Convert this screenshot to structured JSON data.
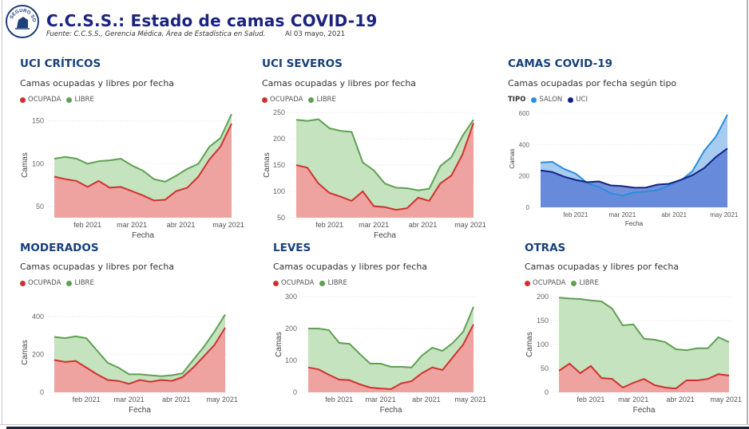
{
  "header": {
    "title": "C.C.S.S.: Estado de camas COVID-19",
    "source": "Fuente: C.C.S.S., Gerencia Médica, Área de Estadística en Salud.",
    "date": "Al 03 mayo, 2021",
    "logo_text": "SEGURO SOCIAL"
  },
  "colors": {
    "title": "#1a237e",
    "panel_title": "#17407a",
    "ocupada": "#d0312d",
    "ocupada_fill": "#efa3a0",
    "libre": "#5fa052",
    "libre_fill": "#c6e3bf",
    "salon": "#2b8de0",
    "salon_fill": "#9cc6f0",
    "uci": "#142283",
    "uci_fill": "#5c7fd6"
  },
  "chart_data": [
    {
      "id": "uci-criticos",
      "type": "area",
      "title": "UCI CRÍTICOS",
      "subtitle": "Camas ocupadas y libres por fecha",
      "legend": [
        "OCUPADA",
        "LIBRE"
      ],
      "legend_position": "top-left",
      "xlabel": "Fecha",
      "ylabel": "Camas",
      "x_ticks": [
        "feb 2021",
        "mar 2021",
        "abr 2021",
        "may 2021"
      ],
      "y_ticks": [
        50,
        100,
        150
      ],
      "ylim": [
        37,
        160
      ],
      "grid": true,
      "x": [
        "2021-01-11",
        "2021-01-18",
        "2021-01-25",
        "2021-02-01",
        "2021-02-08",
        "2021-02-15",
        "2021-02-22",
        "2021-03-01",
        "2021-03-08",
        "2021-03-15",
        "2021-03-22",
        "2021-03-29",
        "2021-04-05",
        "2021-04-12",
        "2021-04-19",
        "2021-04-26",
        "2021-05-03"
      ],
      "series": [
        {
          "name": "OCUPADA",
          "values": [
            85,
            82,
            80,
            73,
            80,
            72,
            73,
            68,
            63,
            57,
            58,
            68,
            72,
            85,
            105,
            120,
            147
          ]
        },
        {
          "name": "LIBRE_TOP",
          "values": [
            106,
            108,
            106,
            100,
            103,
            104,
            106,
            98,
            92,
            82,
            79,
            86,
            94,
            100,
            120,
            130,
            158
          ]
        }
      ]
    },
    {
      "id": "uci-severos",
      "type": "area",
      "title": "UCI SEVEROS",
      "subtitle": "Camas ocupadas y libres por fecha",
      "legend": [
        "OCUPADA",
        "LIBRE"
      ],
      "legend_position": "top-left",
      "xlabel": "Fecha",
      "ylabel": "Camas",
      "x_ticks": [
        "feb 2021",
        "mar 2021",
        "abr 2021",
        "may 2021"
      ],
      "y_ticks": [
        50,
        100,
        150,
        200,
        250
      ],
      "ylim": [
        50,
        250
      ],
      "grid": true,
      "x": [
        "2021-01-11",
        "2021-01-18",
        "2021-01-25",
        "2021-02-01",
        "2021-02-08",
        "2021-02-15",
        "2021-02-22",
        "2021-03-01",
        "2021-03-08",
        "2021-03-15",
        "2021-03-22",
        "2021-03-29",
        "2021-04-05",
        "2021-04-12",
        "2021-04-19",
        "2021-04-26",
        "2021-05-03"
      ],
      "series": [
        {
          "name": "OCUPADA",
          "values": [
            150,
            145,
            115,
            97,
            90,
            82,
            100,
            72,
            70,
            65,
            68,
            88,
            82,
            115,
            130,
            170,
            230
          ]
        },
        {
          "name": "LIBRE_TOP",
          "values": [
            236,
            234,
            237,
            220,
            215,
            213,
            155,
            140,
            115,
            107,
            106,
            102,
            105,
            148,
            165,
            205,
            236
          ]
        }
      ]
    },
    {
      "id": "camas-covid-19",
      "type": "area",
      "title": "CAMAS COVID-19",
      "subtitle": "Camas ocupadas por fecha según tipo",
      "legend_title": "TIPO",
      "legend": [
        "SALON",
        "UCI"
      ],
      "legend_position": "top-left",
      "xlabel": "Fecha",
      "ylabel": "Camas",
      "x_ticks": [
        "feb 2021",
        "mar 2021",
        "abr 2021",
        "may 2021"
      ],
      "y_ticks": [
        0,
        200,
        400,
        600
      ],
      "ylim": [
        0,
        620
      ],
      "grid": true,
      "x": [
        "2021-01-11",
        "2021-01-18",
        "2021-01-25",
        "2021-02-01",
        "2021-02-08",
        "2021-02-15",
        "2021-02-22",
        "2021-03-01",
        "2021-03-08",
        "2021-03-15",
        "2021-03-22",
        "2021-03-29",
        "2021-04-05",
        "2021-04-12",
        "2021-04-19",
        "2021-04-26",
        "2021-05-03"
      ],
      "series": [
        {
          "name": "SALON",
          "values": [
            285,
            290,
            245,
            215,
            155,
            130,
            90,
            75,
            95,
            100,
            110,
            140,
            170,
            230,
            360,
            450,
            590
          ]
        },
        {
          "name": "UCI",
          "values": [
            235,
            225,
            195,
            175,
            160,
            165,
            140,
            135,
            125,
            125,
            145,
            150,
            175,
            205,
            250,
            320,
            375
          ]
        }
      ]
    },
    {
      "id": "moderados",
      "type": "area",
      "title": "MODERADOS",
      "subtitle": "Camas ocupadas y libres por fecha",
      "legend": [
        "OCUPADA",
        "LIBRE"
      ],
      "legend_position": "top-left",
      "xlabel": "Fecha",
      "ylabel": "Camas",
      "x_ticks": [
        "feb 2021",
        "mar 2021",
        "abr 2021",
        "may 2021"
      ],
      "y_ticks": [
        0,
        200,
        400
      ],
      "ylim": [
        0,
        420
      ],
      "grid": true,
      "x": [
        "2021-01-11",
        "2021-01-18",
        "2021-01-25",
        "2021-02-01",
        "2021-02-08",
        "2021-02-15",
        "2021-02-22",
        "2021-03-01",
        "2021-03-08",
        "2021-03-15",
        "2021-03-22",
        "2021-03-29",
        "2021-04-05",
        "2021-04-12",
        "2021-04-19",
        "2021-04-26",
        "2021-05-03"
      ],
      "series": [
        {
          "name": "OCUPADA",
          "values": [
            170,
            160,
            165,
            130,
            95,
            65,
            60,
            45,
            65,
            55,
            65,
            60,
            80,
            130,
            190,
            250,
            340
          ]
        },
        {
          "name": "LIBRE_TOP",
          "values": [
            292,
            285,
            295,
            285,
            220,
            155,
            130,
            95,
            95,
            90,
            85,
            90,
            100,
            170,
            240,
            320,
            410
          ]
        }
      ]
    },
    {
      "id": "leves",
      "type": "area",
      "title": "LEVES",
      "subtitle": "Camas ocupadas y libres por fecha",
      "legend": [
        "OCUPADA",
        "LIBRE"
      ],
      "legend_position": "top-left",
      "xlabel": "Fecha",
      "ylabel": "Camas",
      "x_ticks": [
        "feb 2021",
        "mar 2021",
        "abr 2021",
        "may 2021"
      ],
      "y_ticks": [
        0,
        100,
        200,
        300
      ],
      "ylim": [
        0,
        300
      ],
      "grid": true,
      "x": [
        "2021-01-11",
        "2021-01-18",
        "2021-01-25",
        "2021-02-01",
        "2021-02-08",
        "2021-02-15",
        "2021-02-22",
        "2021-03-01",
        "2021-03-08",
        "2021-03-15",
        "2021-03-22",
        "2021-03-29",
        "2021-04-05",
        "2021-04-12",
        "2021-04-19",
        "2021-04-26",
        "2021-05-03"
      ],
      "series": [
        {
          "name": "OCUPADA",
          "values": [
            78,
            72,
            55,
            40,
            38,
            25,
            15,
            12,
            10,
            28,
            35,
            60,
            78,
            70,
            110,
            150,
            213
          ]
        },
        {
          "name": "LIBRE_TOP",
          "values": [
            200,
            200,
            195,
            155,
            152,
            120,
            90,
            90,
            80,
            80,
            78,
            115,
            140,
            130,
            155,
            190,
            268
          ]
        }
      ]
    },
    {
      "id": "otras",
      "type": "area",
      "title": "OTRAS",
      "subtitle": "Camas ocupadas y libres por fecha",
      "legend": [
        "OCUPADA",
        "LIBRE"
      ],
      "legend_position": "top-left",
      "xlabel": "Fecha",
      "ylabel": "Camas",
      "x_ticks": [
        "feb 2021",
        "mar 2021",
        "abr 2021",
        "may 2021"
      ],
      "y_ticks": [
        0,
        50,
        100,
        150,
        200
      ],
      "ylim": [
        0,
        200
      ],
      "grid": true,
      "x": [
        "2021-01-11",
        "2021-01-18",
        "2021-01-25",
        "2021-02-01",
        "2021-02-08",
        "2021-02-15",
        "2021-02-22",
        "2021-03-01",
        "2021-03-08",
        "2021-03-15",
        "2021-03-22",
        "2021-03-29",
        "2021-04-05",
        "2021-04-12",
        "2021-04-19",
        "2021-04-26",
        "2021-05-03"
      ],
      "series": [
        {
          "name": "OCUPADA",
          "values": [
            45,
            60,
            40,
            55,
            30,
            28,
            10,
            20,
            28,
            15,
            10,
            8,
            25,
            25,
            28,
            38,
            35
          ]
        },
        {
          "name": "LIBRE_TOP",
          "values": [
            198,
            196,
            195,
            192,
            190,
            175,
            140,
            142,
            112,
            110,
            105,
            90,
            88,
            92,
            92,
            115,
            105
          ]
        }
      ]
    }
  ]
}
